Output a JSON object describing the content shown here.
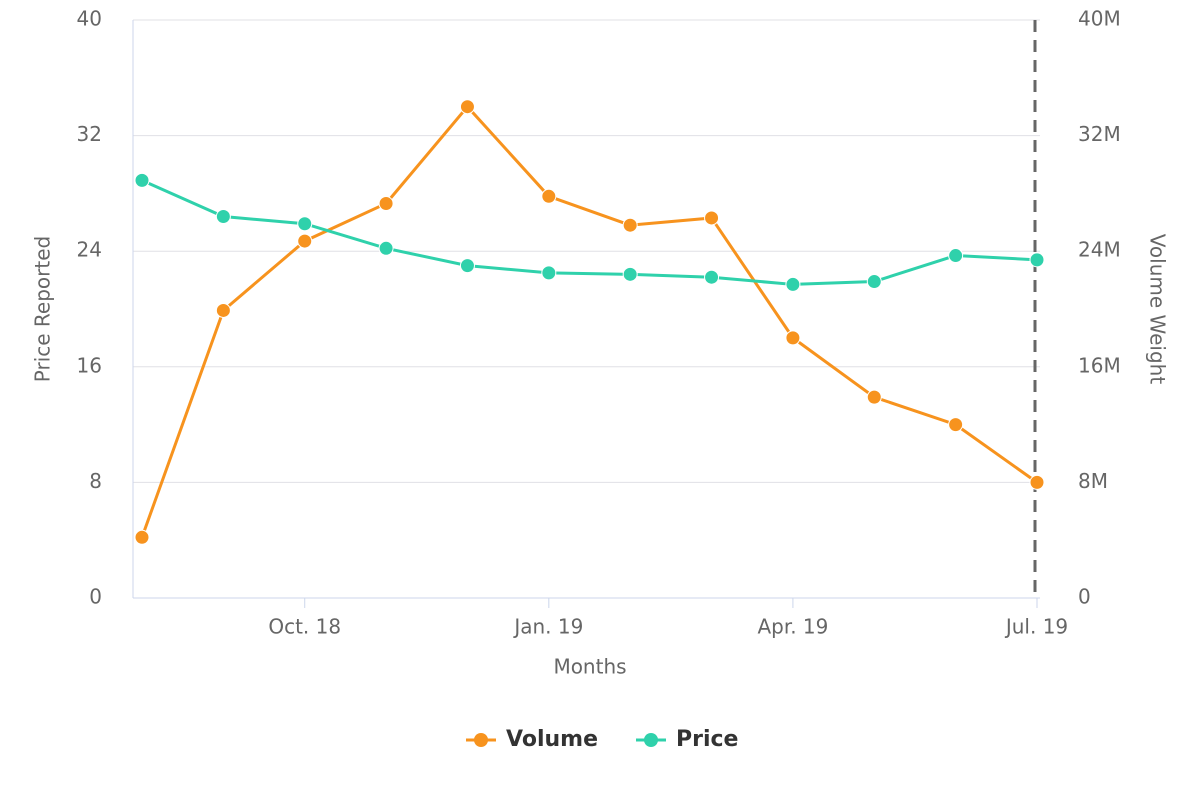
{
  "chart_data": {
    "type": "line",
    "x_label": "Months",
    "y_label": "Price Reported",
    "y2_label": "Volume Weight",
    "categories": [
      null,
      null,
      "Oct. 18",
      null,
      null,
      "Jan. 19",
      null,
      null,
      "Apr. 19",
      null,
      null,
      "Jul. 19"
    ],
    "series": [
      {
        "name": "Volume",
        "color": "#f7931e",
        "axis": "y2",
        "values": [
          4200000,
          19900000,
          24700000,
          27300000,
          34000000,
          27800000,
          25800000,
          26300000,
          18000000,
          13900000,
          12000000,
          8000000
        ]
      },
      {
        "name": "Price",
        "color": "#2fd1ab",
        "values": [
          28.9,
          26.4,
          25.9,
          24.2,
          23.0,
          22.5,
          22.4,
          22.2,
          21.7,
          21.9,
          23.7,
          23.4
        ]
      }
    ],
    "ylim": [
      0,
      40
    ],
    "yticks": [
      0,
      8,
      16,
      24,
      32,
      40
    ],
    "y2lim": [
      0,
      40000000
    ],
    "y2ticks": [
      {
        "value": 0,
        "label": "0"
      },
      {
        "value": 8000000,
        "label": "8M"
      },
      {
        "value": 16000000,
        "label": "16M"
      },
      {
        "value": 24000000,
        "label": "24M"
      },
      {
        "value": 32000000,
        "label": "32M"
      },
      {
        "value": 40000000,
        "label": "40M"
      }
    ],
    "grid": true,
    "legend": "bottom"
  }
}
